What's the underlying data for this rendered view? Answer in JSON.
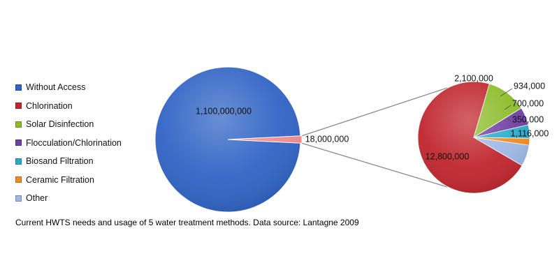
{
  "chart_data": [
    {
      "type": "pie",
      "title": "",
      "categories": [
        "Without Access",
        "Chlorination, Solar Disinfection, Flocculation/Chlorination, Biosand Filtration, Ceramic Filtration, Other"
      ],
      "values": [
        1100000000,
        18000000
      ],
      "data_labels": [
        "1,100,000,000",
        "18,000,000"
      ],
      "colors": [
        "#2f63c4",
        "#f08d8d"
      ]
    },
    {
      "type": "pie",
      "title": "",
      "categories": [
        "Chlorination",
        "Solar Disinfection",
        "Flocculation/Chlorination",
        "Biosand Filtration",
        "Ceramic Filtration",
        "Other"
      ],
      "values": [
        12800000,
        2100000,
        934000,
        700000,
        350000,
        1116000
      ],
      "data_labels": [
        "12,800,000",
        "2,100,000",
        "934,000",
        "700,000",
        "350,000",
        "1,116,000"
      ],
      "colors": [
        "#c0262d",
        "#8cbc2a",
        "#6f3ea3",
        "#2aaccd",
        "#f08d1e",
        "#9db8e6"
      ]
    }
  ],
  "legend": {
    "placement": "left",
    "items": [
      {
        "label": "Without Access",
        "color": "#2f63c4"
      },
      {
        "label": "Chlorination",
        "color": "#c0262d"
      },
      {
        "label": "Solar Disinfection",
        "color": "#8cbc2a"
      },
      {
        "label": "Flocculation/Chlorination",
        "color": "#6f3ea3"
      },
      {
        "label": "Biosand Filtration",
        "color": "#2aaccd"
      },
      {
        "label": "Ceramic Filtration",
        "color": "#f08d1e"
      },
      {
        "label": "Other",
        "color": "#9db8e6"
      }
    ]
  },
  "caption": "Current HWTS needs and usage of 5 water treatment methods. Data source: Lantagne 2009"
}
